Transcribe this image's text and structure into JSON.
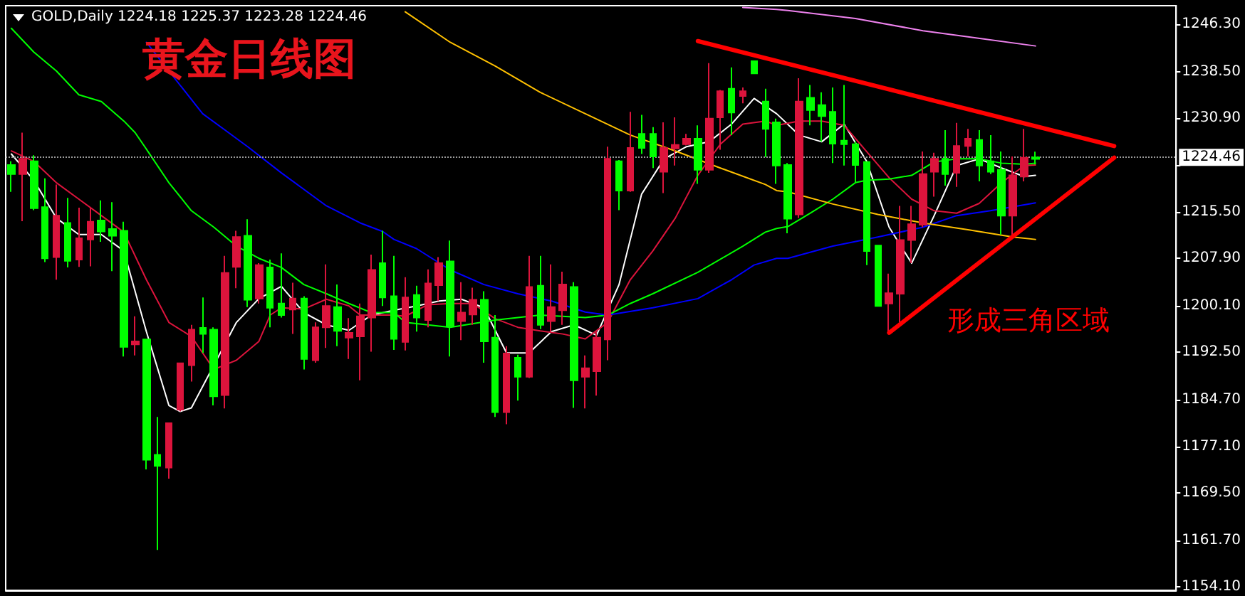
{
  "chart_data": {
    "type": "candlestick",
    "title": "黄金日线图",
    "subtitle": "GOLD,Daily 1224.18 1225.37 1223.28 1224.46",
    "annotations": [
      "形成三角区域"
    ],
    "categories": [
      null,
      null,
      null,
      null,
      null,
      null,
      null,
      null,
      null,
      null,
      null,
      null,
      null,
      null,
      null,
      null,
      null,
      null,
      null,
      null,
      null,
      null,
      null,
      null,
      null,
      null,
      null,
      null,
      null,
      null,
      null,
      null,
      null,
      null,
      null,
      null,
      null,
      null,
      null,
      null,
      null,
      null,
      null,
      null,
      null,
      null,
      null,
      null,
      null,
      null,
      null,
      null,
      null,
      null,
      null,
      null,
      null,
      null,
      null,
      null,
      null,
      null,
      null,
      null,
      null,
      null,
      null,
      null,
      null,
      null,
      null,
      null,
      null,
      null,
      null,
      null,
      null,
      null,
      null,
      null,
      null,
      null,
      null,
      null,
      null,
      null,
      null,
      null,
      null,
      null,
      null,
      null,
      null,
      null,
      null,
      null,
      null,
      null,
      null,
      null,
      null,
      null,
      null,
      null
    ],
    "ohlc": [
      [
        1221.7,
        1223.8,
        1218.8,
        1223.2
      ],
      [
        1224.2,
        1228.5,
        1214.0,
        1221.7
      ],
      [
        1216.1,
        1224.8,
        1215.8,
        1223.8
      ],
      [
        1207.9,
        1221.0,
        1207.3,
        1216.3
      ],
      [
        1214.9,
        1220.0,
        1204.4,
        1208.1
      ],
      [
        1207.5,
        1217.8,
        1206.4,
        1213.7
      ],
      [
        1211.2,
        1216.2,
        1206.5,
        1207.7
      ],
      [
        1213.9,
        1216.2,
        1206.6,
        1211.0
      ],
      [
        1212.3,
        1217.4,
        1210.6,
        1214.1
      ],
      [
        1211.6,
        1217.1,
        1205.8,
        1212.7
      ],
      [
        1193.4,
        1213.9,
        1191.8,
        1212.4
      ],
      [
        1194.3,
        1198.4,
        1192.0,
        1193.8
      ],
      [
        1174.9,
        1194.7,
        1173.3,
        1194.6
      ],
      [
        1173.9,
        1181.9,
        1160.1,
        1175.7
      ],
      [
        1180.9,
        1180.9,
        1171.8,
        1173.6
      ],
      [
        1190.7,
        1190.8,
        1182.8,
        1183.1
      ],
      [
        1196.2,
        1197.0,
        1187.7,
        1190.4
      ],
      [
        1195.5,
        1201.5,
        1192.4,
        1196.5
      ],
      [
        1185.3,
        1196.6,
        1183.8,
        1196.2
      ],
      [
        1205.5,
        1208.3,
        1183.3,
        1185.5
      ],
      [
        1211.4,
        1212.4,
        1203.0,
        1206.5
      ],
      [
        1201.1,
        1214.3,
        1199.9,
        1211.6
      ],
      [
        1206.8,
        1207.1,
        1200.5,
        1201.3
      ],
      [
        1199.8,
        1207.7,
        1196.6,
        1206.4
      ],
      [
        1198.6,
        1208.7,
        1198.2,
        1200.5
      ],
      [
        1201.3,
        1203.9,
        1195.5,
        1199.5
      ],
      [
        1191.4,
        1201.7,
        1189.7,
        1201.3
      ],
      [
        1196.6,
        1197.4,
        1190.8,
        1191.2
      ],
      [
        1200.1,
        1206.9,
        1193.2,
        1196.6
      ],
      [
        1196.0,
        1203.6,
        1193.5,
        1199.9
      ],
      [
        1195.7,
        1198.1,
        1191.4,
        1194.9
      ],
      [
        1198.4,
        1200.5,
        1187.9,
        1195.1
      ],
      [
        1206.0,
        1208.5,
        1192.6,
        1198.2
      ],
      [
        1201.5,
        1212.4,
        1200.1,
        1207.1
      ],
      [
        1194.7,
        1208.3,
        1192.9,
        1201.7
      ],
      [
        1201.5,
        1204.8,
        1192.8,
        1194.2
      ],
      [
        1198.2,
        1203.4,
        1195.9,
        1201.9
      ],
      [
        1203.8,
        1206.1,
        1196.6,
        1197.8
      ],
      [
        1207.1,
        1208.1,
        1200.9,
        1203.5
      ],
      [
        1196.8,
        1210.8,
        1191.8,
        1207.4
      ],
      [
        1199.0,
        1204.0,
        1194.5,
        1197.6
      ],
      [
        1201.1,
        1203.1,
        1197.0,
        1198.7
      ],
      [
        1194.3,
        1202.5,
        1190.8,
        1201.1
      ],
      [
        1182.7,
        1198.6,
        1181.9,
        1194.9
      ],
      [
        1192.3,
        1193.5,
        1180.7,
        1182.7
      ],
      [
        1188.5,
        1192.1,
        1184.6,
        1191.6
      ],
      [
        1203.2,
        1208.3,
        1188.3,
        1188.5
      ],
      [
        1197.0,
        1208.3,
        1196.3,
        1203.4
      ],
      [
        1199.9,
        1206.9,
        1195.9,
        1197.6
      ],
      [
        1203.6,
        1205.7,
        1197.0,
        1199.4
      ],
      [
        1187.9,
        1204.0,
        1183.4,
        1203.2
      ],
      [
        1189.9,
        1192.0,
        1183.3,
        1188.5
      ],
      [
        1194.9,
        1195.9,
        1185.4,
        1189.4
      ],
      [
        1224.2,
        1226.2,
        1191.2,
        1194.6
      ],
      [
        1219.0,
        1224.0,
        1215.8,
        1223.8
      ],
      [
        1226.0,
        1231.9,
        1218.8,
        1219.0
      ],
      [
        1226.0,
        1231.4,
        1225.0,
        1228.3
      ],
      [
        1224.6,
        1229.4,
        1222.7,
        1228.3
      ],
      [
        1226.0,
        1230.2,
        1218.6,
        1222.1
      ],
      [
        1226.5,
        1231.0,
        1223.1,
        1225.9
      ],
      [
        1227.5,
        1228.3,
        1226.4,
        1226.6
      ],
      [
        1222.4,
        1229.7,
        1220.1,
        1227.5
      ],
      [
        1230.8,
        1239.9,
        1221.9,
        1222.4
      ],
      [
        1235.3,
        1235.5,
        1225.7,
        1231.0
      ],
      [
        1231.8,
        1239.2,
        1228.1,
        1235.7
      ],
      [
        1235.3,
        1235.9,
        1233.3,
        1234.5
      ],
      [
        1238.2,
        1240.2,
        1238.2,
        1240.2
      ],
      [
        1229.1,
        1235.7,
        1224.5,
        1233.6
      ],
      [
        1223.1,
        1230.8,
        1220.1,
        1230.2
      ],
      [
        1214.4,
        1223.5,
        1212.0,
        1223.2
      ],
      [
        1233.6,
        1237.4,
        1214.5,
        1215.1
      ],
      [
        1232.2,
        1236.3,
        1229.7,
        1234.2
      ],
      [
        1231.2,
        1235.1,
        1227.0,
        1233.0
      ],
      [
        1226.7,
        1235.9,
        1223.5,
        1231.9
      ],
      [
        1226.6,
        1236.3,
        1223.1,
        1227.2
      ],
      [
        1223.2,
        1227.0,
        1220.3,
        1226.6
      ],
      [
        1209.1,
        1223.8,
        1206.8,
        1223.7
      ],
      [
        1200.1,
        1210.0,
        1200.1,
        1210.0
      ],
      [
        1202.2,
        1205.4,
        1195.6,
        1200.5
      ],
      [
        1210.9,
        1216.5,
        1197.4,
        1202.1
      ],
      [
        1213.5,
        1216.5,
        1207.1,
        1210.9
      ],
      [
        1221.7,
        1225.4,
        1213.0,
        1213.4
      ],
      [
        1224.2,
        1225.2,
        1218.0,
        1222.1
      ],
      [
        1221.7,
        1228.9,
        1219.8,
        1224.2
      ],
      [
        1226.3,
        1230.1,
        1219.6,
        1221.9
      ],
      [
        1227.5,
        1229.1,
        1224.6,
        1226.3
      ],
      [
        1223.1,
        1228.9,
        1220.5,
        1227.3
      ],
      [
        1222.1,
        1228.1,
        1221.7,
        1223.8
      ],
      [
        1214.9,
        1225.4,
        1211.8,
        1222.4
      ],
      [
        1221.5,
        1224.6,
        1211.6,
        1214.9
      ],
      [
        1224.4,
        1229.1,
        1220.5,
        1221.3
      ],
      [
        1224.18,
        1225.37,
        1223.28,
        1224.46
      ],
      null,
      null,
      null,
      null,
      null,
      null,
      null,
      null,
      null,
      null,
      null,
      null
    ],
    "series": [
      {
        "type": "line",
        "color": "#ffffff",
        "values": [
          1225.0,
          null,
          1220.7,
          null,
          1214.5,
          null,
          1211.8,
          null,
          1211.8,
          null,
          1209.1,
          null,
          1195.9,
          null,
          1183.8,
          1182.8,
          1183.4,
          null,
          null,
          null,
          1197.4,
          null,
          1201.3,
          null,
          1203.3,
          null,
          1199.0,
          null,
          1197.0,
          null,
          1196.1,
          null,
          1198.6,
          null,
          1199.4,
          null,
          1200.1,
          null,
          1200.9,
          null,
          1201.2,
          null,
          1199.8,
          null,
          1192.4,
          null,
          1192.4,
          null,
          1195.9,
          null,
          1197.0,
          null,
          1195.3,
          null,
          1203.6,
          null,
          1218.4,
          null,
          1224.2,
          null,
          1226.2,
          null,
          1227.0,
          null,
          1229.9,
          null,
          1234.1,
          null,
          1231.6,
          null,
          1228.1,
          null,
          1227.0,
          null,
          1229.9,
          null,
          1223.8,
          null,
          1213.0,
          null,
          1207.1,
          null,
          1214.9,
          null,
          1223.1,
          null,
          1224.2,
          null,
          1222.7,
          null,
          1221.3,
          1221.5,
          null,
          null,
          null,
          null,
          null,
          null,
          null,
          null,
          null,
          null,
          null,
          null
        ]
      },
      {
        "type": "line",
        "color": "#dc143c",
        "values": [
          1225.5,
          null,
          1223.8,
          null,
          1220.3,
          null,
          1217.6,
          null,
          1214.9,
          null,
          1212.2,
          null,
          1204.4,
          null,
          1197.4,
          null,
          1195.1,
          null,
          1189.7,
          null,
          1191.2,
          null,
          1194.3,
          1198.6,
          1199.8,
          null,
          1199.6,
          null,
          1201.2,
          null,
          1200.1,
          1198.6,
          null,
          1198.6,
          1198.6,
          1198.4,
          null,
          1200.3,
          null,
          1200.5,
          null,
          1200.5,
          null,
          1198.0,
          null,
          1196.6,
          null,
          1196.0,
          null,
          1195.5,
          null,
          1194.7,
          null,
          1197.4,
          null,
          1204.4,
          null,
          1209.1,
          null,
          1214.5,
          null,
          1221.5,
          null,
          1226.6,
          null,
          1229.9,
          null,
          1230.4,
          1229.7,
          null,
          1230.4,
          null,
          1230.4,
          null,
          1229.7,
          null,
          1225.4,
          null,
          1221.1,
          null,
          1217.6,
          null,
          1215.7,
          null,
          1215.3,
          null,
          1216.9,
          null,
          1220.3,
          null,
          1223.1,
          1223.2,
          null,
          null,
          null,
          null,
          null,
          null,
          null,
          null,
          null,
          null,
          null,
          null
        ]
      },
      {
        "type": "line",
        "color": "#00ff00",
        "values": [
          1245.6,
          null,
          1241.7,
          null,
          1238.6,
          null,
          1234.7,
          null,
          1233.6,
          null,
          1230.4,
          1228.5,
          1225.8,
          null,
          1220.3,
          null,
          1215.7,
          null,
          1213.0,
          null,
          1209.9,
          null,
          1207.9,
          null,
          1206.4,
          null,
          1203.6,
          null,
          1202.1,
          null,
          1200.5,
          null,
          1199.0,
          null,
          1199.0,
          1197.4,
          null,
          null,
          null,
          1196.6,
          null,
          null,
          null,
          1197.8,
          null,
          null,
          null,
          1198.6,
          null,
          null,
          null,
          1198.2,
          null,
          1198.6,
          null,
          1200.5,
          null,
          1202.1,
          null,
          null,
          null,
          1205.6,
          null,
          null,
          null,
          1209.9,
          null,
          1212.2,
          1212.8,
          1213.1,
          null,
          1215.3,
          null,
          1217.6,
          null,
          1220.3,
          1220.7,
          null,
          1220.9,
          null,
          1221.5,
          null,
          1223.7,
          null,
          1224.2,
          null,
          1224.2,
          null,
          1223.5,
          null,
          1223.3,
          1223.5,
          null,
          null,
          null,
          null,
          null,
          null,
          null,
          null,
          null,
          null,
          null,
          null
        ]
      },
      {
        "type": "line",
        "color": "#0000ff",
        "values": [
          null,
          null,
          null,
          null,
          null,
          null,
          null,
          null,
          null,
          null,
          null,
          null,
          1243.3,
          null,
          1238.6,
          null,
          null,
          1231.6,
          null,
          1228.9,
          null,
          1226.2,
          null,
          null,
          1221.9,
          null,
          null,
          null,
          1216.5,
          null,
          null,
          1213.7,
          null,
          1212.3,
          1211.0,
          null,
          1209.5,
          null,
          null,
          1206.0,
          null,
          null,
          1203.6,
          null,
          null,
          1202.1,
          null,
          null,
          1200.9,
          null,
          null,
          1199.1,
          null,
          1198.6,
          null,
          null,
          null,
          1199.8,
          null,
          null,
          null,
          1201.3,
          null,
          null,
          1204.4,
          null,
          1206.8,
          null,
          1207.9,
          1207.9,
          null,
          null,
          null,
          1209.9,
          null,
          null,
          null,
          1211.4,
          null,
          null,
          null,
          1213.0,
          null,
          null,
          1214.9,
          null,
          null,
          1215.7,
          null,
          null,
          null,
          1217.0,
          null,
          null,
          null,
          null,
          null,
          null,
          null,
          null,
          null,
          null,
          null,
          null
        ]
      },
      {
        "type": "line",
        "color": "#ffc000",
        "values": [
          null,
          null,
          null,
          null,
          null,
          null,
          null,
          null,
          null,
          null,
          null,
          null,
          null,
          null,
          null,
          null,
          null,
          null,
          null,
          null,
          null,
          null,
          null,
          null,
          null,
          null,
          null,
          null,
          null,
          null,
          null,
          null,
          null,
          null,
          null,
          1248.3,
          null,
          null,
          null,
          1243.3,
          null,
          null,
          null,
          1239.4,
          null,
          null,
          null,
          1235.1,
          null,
          null,
          null,
          1231.6,
          null,
          null,
          null,
          1228.1,
          null,
          null,
          null,
          1225.5,
          null,
          null,
          null,
          1222.7,
          null,
          null,
          null,
          1220.0,
          1219.0,
          1218.8,
          null,
          null,
          null,
          1216.8,
          null,
          null,
          null,
          1215.1,
          null,
          null,
          null,
          1213.7,
          null,
          null,
          null,
          1212.6,
          null,
          null,
          null,
          1211.4,
          null,
          1211.0,
          null,
          null,
          null,
          null,
          null,
          null,
          null,
          null,
          null,
          null,
          null,
          null
        ]
      },
      {
        "type": "line",
        "color": "#ee82ee",
        "values": [
          null,
          null,
          null,
          null,
          null,
          null,
          null,
          null,
          null,
          null,
          null,
          null,
          null,
          null,
          null,
          null,
          null,
          null,
          null,
          null,
          null,
          null,
          null,
          null,
          null,
          null,
          null,
          null,
          null,
          null,
          null,
          null,
          null,
          null,
          null,
          null,
          null,
          null,
          null,
          null,
          null,
          null,
          null,
          null,
          null,
          null,
          null,
          null,
          null,
          null,
          null,
          null,
          null,
          null,
          null,
          null,
          null,
          null,
          null,
          null,
          null,
          null,
          null,
          null,
          null,
          1249.0,
          null,
          null,
          1248.7,
          1248.5,
          null,
          null,
          null,
          null,
          null,
          1247.2,
          null,
          null,
          null,
          null,
          null,
          1245.2,
          null,
          null,
          null,
          1244.2,
          null,
          null,
          null,
          null,
          null,
          1242.7,
          null,
          null,
          null,
          null,
          null,
          null,
          null,
          null,
          null,
          null,
          null,
          null
        ]
      },
      {
        "type": "line",
        "color": "#ff0000",
        "values": [
          null,
          null,
          null,
          null,
          null,
          null,
          null,
          null,
          null,
          null,
          null,
          null,
          null,
          null,
          null,
          null,
          null,
          null,
          null,
          null,
          null,
          null,
          null,
          null,
          null,
          null,
          null,
          null,
          null,
          null,
          null,
          null,
          null,
          null,
          null,
          null,
          null,
          null,
          null,
          null,
          null,
          null,
          null,
          null,
          null,
          null,
          null,
          null,
          null,
          null,
          null,
          null,
          null,
          null,
          null,
          null,
          null,
          null,
          null,
          null,
          null,
          1243.5,
          null,
          null,
          null,
          null,
          null,
          null,
          null,
          null,
          null,
          null,
          null,
          null,
          null,
          null,
          null,
          null,
          null,
          null,
          null,
          null,
          null,
          null,
          null,
          null,
          null,
          null,
          null,
          null,
          null,
          null,
          null,
          null,
          null,
          null,
          null,
          null,
          1226.3,
          null,
          null,
          null,
          null,
          null
        ]
      },
      {
        "type": "line",
        "color": "#ff0000",
        "values": [
          null,
          null,
          null,
          null,
          null,
          null,
          null,
          null,
          null,
          null,
          null,
          null,
          null,
          null,
          null,
          null,
          null,
          null,
          null,
          null,
          null,
          null,
          null,
          null,
          null,
          null,
          null,
          null,
          null,
          null,
          null,
          null,
          null,
          null,
          null,
          null,
          null,
          null,
          null,
          null,
          null,
          null,
          null,
          null,
          null,
          null,
          null,
          null,
          null,
          null,
          null,
          null,
          null,
          null,
          null,
          null,
          null,
          null,
          null,
          null,
          null,
          null,
          null,
          null,
          null,
          null,
          null,
          null,
          null,
          null,
          null,
          null,
          null,
          null,
          null,
          null,
          null,
          null,
          1195.7,
          null,
          null,
          null,
          null,
          null,
          null,
          null,
          null,
          null,
          null,
          null,
          null,
          null,
          null,
          null,
          null,
          null,
          null,
          null,
          1224.4,
          null,
          null,
          null,
          null,
          null
        ]
      }
    ],
    "ylim": [
      1153.5,
      1249.3
    ],
    "yticks": [
      {
        "value": 1154.1,
        "label": "1154.10"
      },
      {
        "value": 1161.7,
        "label": "1161.70"
      },
      {
        "value": 1169.5,
        "label": "1169.50"
      },
      {
        "value": 1177.1,
        "label": "1177.10"
      },
      {
        "value": 1184.7,
        "label": "1184.70"
      },
      {
        "value": 1192.5,
        "label": "1192.50"
      },
      {
        "value": 1200.1,
        "label": "1200.10"
      },
      {
        "value": 1207.9,
        "label": "1207.90"
      },
      {
        "value": 1215.5,
        "label": "1215.50"
      },
      {
        "value": 1223.1,
        "label": null
      },
      {
        "value": 1230.9,
        "label": "1230.90"
      },
      {
        "value": 1238.5,
        "label": "1238.50"
      },
      {
        "value": 1246.3,
        "label": "1246.30"
      }
    ],
    "ref_lines": [
      {
        "axis": "y",
        "value": 1224.46,
        "label": "1224.46"
      }
    ],
    "tick_labels": "y",
    "grid": false
  }
}
